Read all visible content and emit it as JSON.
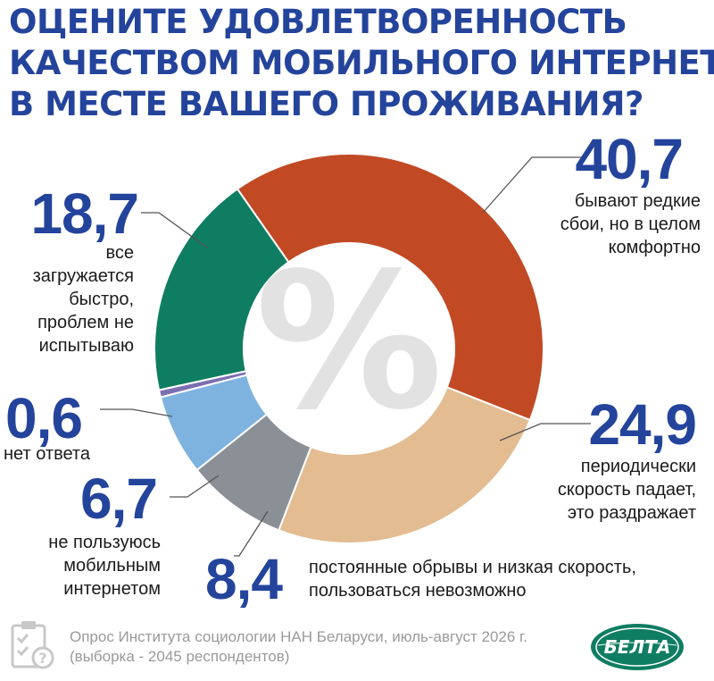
{
  "title_lines": [
    "ОЦЕНИТЕ УДОВЛЕТВОРЕННОСТЬ",
    "КАЧЕСТВОМ МОБИЛЬНОГО ИНТЕРНЕТА",
    "В МЕСТЕ ВАШЕГО ПРОЖИВАНИЯ?"
  ],
  "center_symbol": "%",
  "source_lines": [
    "Опрос Института социологии НАН Беларуси, июль-август 2026 г.",
    "(выборка - 2045 респондентов)"
  ],
  "logo_text": "БЕЛТА",
  "colors": {
    "title": "#24449c",
    "numbers": "#24449c",
    "comfortable": "#c14a24",
    "periodic": "#e3bc91",
    "constant": "#8b9096",
    "no_mobile": "#7fb3df",
    "no_answer": "#7c6fb0",
    "fast": "#0f7d62",
    "logo": "#0f7d62"
  },
  "chart_data": {
    "type": "pie",
    "unit": "%",
    "slices": [
      {
        "value": 40.7,
        "value_label": "40,7",
        "label_lines": [
          "бывают редкие",
          "сбои, но в целом",
          "комфортно"
        ],
        "color": "#c14a24"
      },
      {
        "value": 24.9,
        "value_label": "24,9",
        "label_lines": [
          "периодически",
          "скорость падает,",
          "это раздражает"
        ],
        "color": "#e3bc91"
      },
      {
        "value": 8.4,
        "value_label": "8,4",
        "label_lines": [
          "постоянные обрывы и низкая скорость,",
          "пользоваться невозможно"
        ],
        "color": "#8b9096"
      },
      {
        "value": 6.7,
        "value_label": "6,7",
        "label_lines": [
          "не пользуюсь",
          "мобильным",
          "интернетом"
        ],
        "color": "#7fb3df"
      },
      {
        "value": 0.6,
        "value_label": "0,6",
        "label_lines": [
          "нет ответа"
        ],
        "color": "#7c6fb0"
      },
      {
        "value": 18.7,
        "value_label": "18,7",
        "label_lines": [
          "все",
          "загружается",
          "быстро,",
          "проблем не",
          "испытываю"
        ],
        "color": "#0f7d62"
      }
    ]
  }
}
